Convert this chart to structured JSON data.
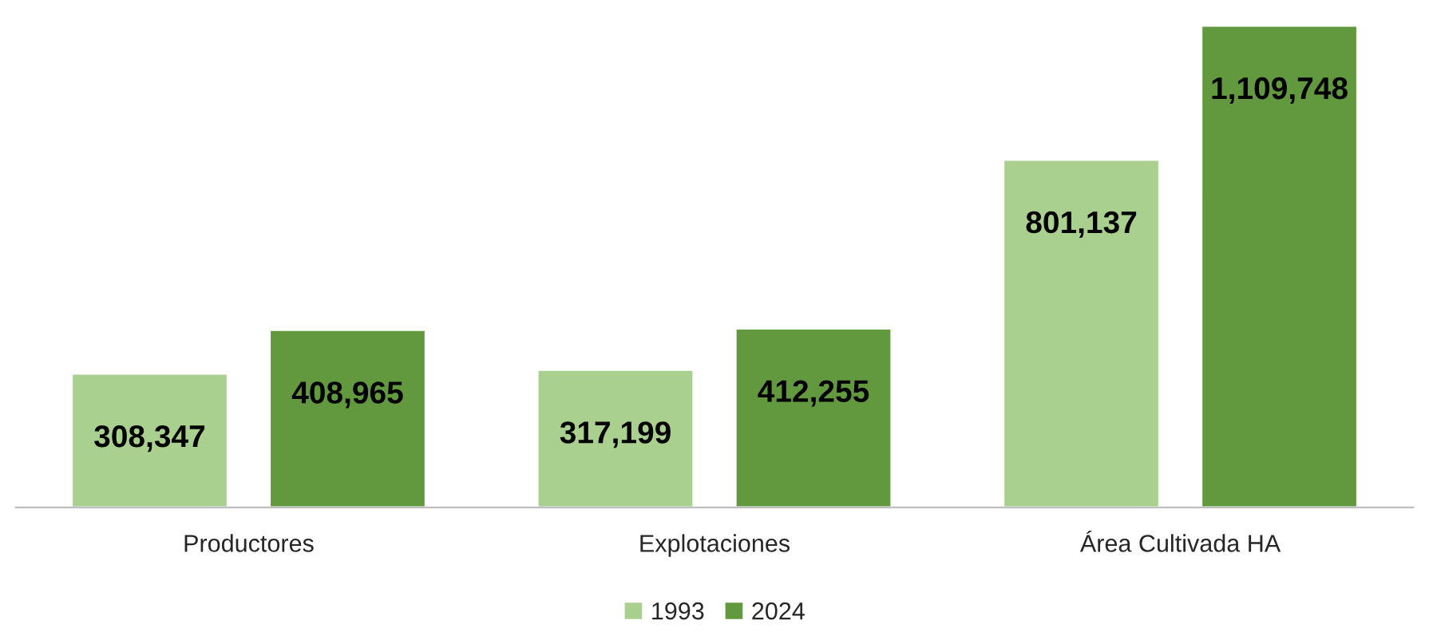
{
  "chart_data": {
    "type": "bar",
    "categories": [
      "Productores",
      "Explotaciones",
      "Área Cultivada HA"
    ],
    "series": [
      {
        "name": "1993",
        "color": "#a9d08e",
        "values": [
          308347,
          317199,
          801137
        ],
        "value_labels": [
          "308,347",
          "317,199",
          "801,137"
        ]
      },
      {
        "name": "2024",
        "color": "#62993e",
        "values": [
          408965,
          412255,
          1109748
        ],
        "value_labels": [
          "408,965",
          "412,255",
          "1,109,748"
        ]
      }
    ],
    "legend": "bottom",
    "grid": false
  }
}
